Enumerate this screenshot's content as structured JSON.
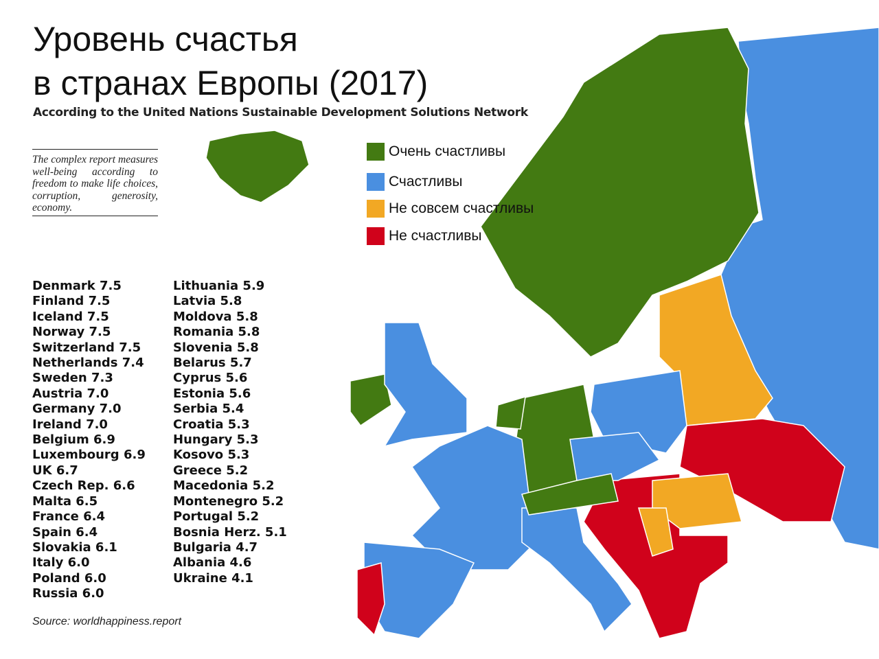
{
  "title_lines": [
    "Уровень счастья",
    "в странах Европы (2017)"
  ],
  "subtitle": "According to the United Nations Sustainable Development Solutions Network",
  "note": "The complex report measures well-being according to freedom to make life choices, corruption, generosity, economy.",
  "legend": [
    {
      "label": "Очень счастливы",
      "color": "#437a12"
    },
    {
      "label": "Счастливы",
      "color": "#4a8fe0"
    },
    {
      "label": "Не совсем счастливы",
      "color": "#f2a824"
    },
    {
      "label": "Не счастливы",
      "color": "#d0021b"
    }
  ],
  "scores": {
    "column_1": [
      "Denmark 7.5",
      "Finland 7.5",
      "Iceland 7.5",
      "Norway 7.5",
      "Switzerland 7.5",
      "Netherlands 7.4",
      "Sweden 7.3",
      "Austria 7.0",
      "Germany 7.0",
      "Ireland 7.0",
      "Belgium 6.9",
      "Luxembourg 6.9",
      "UK 6.7",
      "Czech Rep. 6.6",
      "Malta 6.5",
      "France 6.4",
      "Spain 6.4",
      "Slovakia 6.1",
      "Italy 6.0",
      "Poland 6.0",
      "Russia 6.0"
    ],
    "column_2": [
      "Lithuania 5.9",
      "Latvia 5.8",
      "Moldova 5.8",
      "Romania 5.8",
      "Slovenia 5.8",
      "Belarus 5.7",
      "Cyprus 5.6",
      "Estonia 5.6",
      "Serbia 5.4",
      "Croatia 5.3",
      "Hungary 5.3",
      "Kosovo 5.3",
      "Greece 5.2",
      "Macedonia 5.2",
      "Montenegro 5.2",
      "Portugal 5.2",
      "Bosnia Herz. 5.1",
      "Bulgaria 4.7",
      "Albania 4.6",
      "Ukraine 4.1"
    ]
  },
  "source": "Source: worldhappiness.report"
}
